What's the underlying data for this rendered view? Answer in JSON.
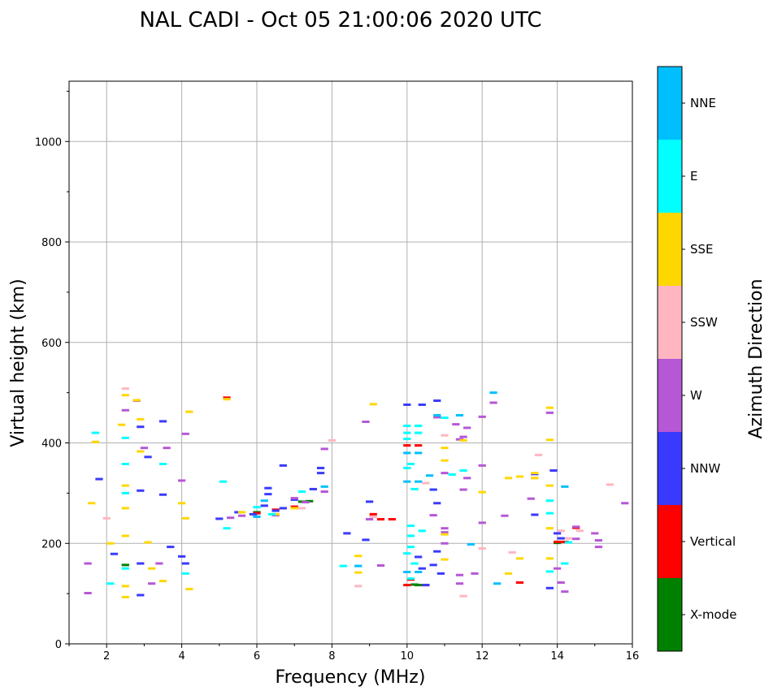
{
  "chart_data": {
    "type": "scatter",
    "title": "NAL CADI - Oct 05 21:00:06 2020 UTC",
    "xlabel": "Frequency (MHz)",
    "ylabel": "Virtual height (km)",
    "xlim": [
      1,
      16
    ],
    "ylim": [
      0,
      1120
    ],
    "grid": true,
    "x_ticks": [
      2,
      4,
      6,
      8,
      10,
      12,
      14,
      16
    ],
    "y_ticks": [
      0,
      200,
      400,
      600,
      800,
      1000
    ],
    "colorbar": {
      "title": "Azimuth Direction",
      "categories": [
        {
          "label": "X-mode",
          "color": "#008000"
        },
        {
          "label": "Vertical",
          "color": "#ff0000"
        },
        {
          "label": "NNW",
          "color": "#3a3aff"
        },
        {
          "label": "W",
          "color": "#b657d6"
        },
        {
          "label": "SSW",
          "color": "#ffb6c1"
        },
        {
          "label": "SSE",
          "color": "#ffd700"
        },
        {
          "label": "E",
          "color": "#00ffff"
        },
        {
          "label": "NNE",
          "color": "#00bfff"
        }
      ]
    },
    "series": [
      {
        "name": "X-mode",
        "points": [
          [
            2.5,
            157
          ],
          [
            6.0,
            262
          ],
          [
            7.2,
            283
          ],
          [
            7.4,
            284
          ],
          [
            10.2,
            118
          ],
          [
            10.3,
            117
          ],
          [
            14.0,
            201
          ]
        ]
      },
      {
        "name": "Vertical",
        "points": [
          [
            5.2,
            490
          ],
          [
            6.0,
            260
          ],
          [
            6.5,
            267
          ],
          [
            7.0,
            273
          ],
          [
            9.1,
            258
          ],
          [
            9.3,
            248
          ],
          [
            9.6,
            248
          ],
          [
            10.0,
            395
          ],
          [
            10.3,
            395
          ],
          [
            10.1,
            128
          ],
          [
            10.0,
            117
          ],
          [
            10.5,
            117
          ],
          [
            13.0,
            122
          ],
          [
            14.0,
            203
          ],
          [
            14.2,
            203
          ],
          [
            14.5,
            231
          ]
        ]
      },
      {
        "name": "NNW",
        "points": [
          [
            1.8,
            328
          ],
          [
            2.2,
            179
          ],
          [
            2.9,
            432
          ],
          [
            2.9,
            305
          ],
          [
            2.9,
            160
          ],
          [
            2.9,
            97
          ],
          [
            3.1,
            372
          ],
          [
            3.5,
            443
          ],
          [
            3.5,
            297
          ],
          [
            3.7,
            193
          ],
          [
            4.0,
            174
          ],
          [
            4.1,
            160
          ],
          [
            5.0,
            249
          ],
          [
            5.5,
            262
          ],
          [
            5.9,
            258
          ],
          [
            6.2,
            275
          ],
          [
            6.3,
            298
          ],
          [
            6.3,
            310
          ],
          [
            6.5,
            265
          ],
          [
            6.7,
            355
          ],
          [
            6.7,
            270
          ],
          [
            7.0,
            287
          ],
          [
            7.5,
            308
          ],
          [
            7.7,
            350
          ],
          [
            7.7,
            340
          ],
          [
            8.4,
            220
          ],
          [
            8.9,
            207
          ],
          [
            9.0,
            283
          ],
          [
            10.0,
            476
          ],
          [
            10.4,
            476
          ],
          [
            10.3,
            173
          ],
          [
            10.4,
            150
          ],
          [
            10.5,
            117
          ],
          [
            10.7,
            157
          ],
          [
            10.8,
            184
          ],
          [
            10.8,
            484
          ],
          [
            10.9,
            140
          ],
          [
            10.8,
            280
          ],
          [
            10.7,
            307
          ],
          [
            13.4,
            338
          ],
          [
            13.4,
            257
          ],
          [
            13.9,
            345
          ],
          [
            13.8,
            111
          ],
          [
            14.0,
            220
          ],
          [
            14.1,
            210
          ]
        ]
      },
      {
        "name": "W",
        "points": [
          [
            1.5,
            160
          ],
          [
            1.5,
            101
          ],
          [
            2.5,
            465
          ],
          [
            2.8,
            484
          ],
          [
            3.0,
            390
          ],
          [
            3.2,
            120
          ],
          [
            3.4,
            160
          ],
          [
            3.6,
            390
          ],
          [
            4.1,
            418
          ],
          [
            4.0,
            325
          ],
          [
            5.3,
            251
          ],
          [
            5.6,
            255
          ],
          [
            6.5,
            256
          ],
          [
            7.0,
            290
          ],
          [
            7.3,
            282
          ],
          [
            7.8,
            303
          ],
          [
            7.8,
            388
          ],
          [
            8.9,
            442
          ],
          [
            9.0,
            248
          ],
          [
            9.3,
            156
          ],
          [
            10.8,
            451
          ],
          [
            10.7,
            256
          ],
          [
            11.0,
            340
          ],
          [
            11.0,
            230
          ],
          [
            11.0,
            200
          ],
          [
            11.0,
            222
          ],
          [
            11.3,
            437
          ],
          [
            11.4,
            407
          ],
          [
            11.5,
            412
          ],
          [
            11.5,
            307
          ],
          [
            11.6,
            430
          ],
          [
            11.6,
            330
          ],
          [
            11.4,
            137
          ],
          [
            11.4,
            120
          ],
          [
            11.8,
            140
          ],
          [
            12.0,
            452
          ],
          [
            12.0,
            355
          ],
          [
            12.0,
            241
          ],
          [
            12.3,
            480
          ],
          [
            12.6,
            255
          ],
          [
            13.3,
            289
          ],
          [
            13.8,
            460
          ],
          [
            14.0,
            150
          ],
          [
            14.1,
            122
          ],
          [
            14.2,
            104
          ],
          [
            14.5,
            209
          ],
          [
            14.5,
            233
          ],
          [
            15.0,
            220
          ],
          [
            15.1,
            206
          ],
          [
            15.1,
            193
          ],
          [
            15.8,
            280
          ]
        ]
      },
      {
        "name": "SSW",
        "points": [
          [
            2.0,
            250
          ],
          [
            2.5,
            508
          ],
          [
            7.2,
            270
          ],
          [
            8.0,
            405
          ],
          [
            8.7,
            115
          ],
          [
            9.1,
            253
          ],
          [
            10.5,
            320
          ],
          [
            11.0,
            415
          ],
          [
            11.5,
            95
          ],
          [
            12.0,
            190
          ],
          [
            12.8,
            182
          ],
          [
            13.4,
            330
          ],
          [
            13.5,
            376
          ],
          [
            14.1,
            225
          ],
          [
            14.3,
            210
          ],
          [
            14.6,
            225
          ],
          [
            15.4,
            317
          ]
        ]
      },
      {
        "name": "SSE",
        "points": [
          [
            1.6,
            280
          ],
          [
            1.7,
            402
          ],
          [
            2.1,
            200
          ],
          [
            2.4,
            436
          ],
          [
            2.5,
            495
          ],
          [
            2.5,
            315
          ],
          [
            2.5,
            270
          ],
          [
            2.5,
            215
          ],
          [
            2.5,
            115
          ],
          [
            2.5,
            93
          ],
          [
            2.8,
            485
          ],
          [
            2.9,
            447
          ],
          [
            2.9,
            383
          ],
          [
            3.1,
            202
          ],
          [
            3.2,
            150
          ],
          [
            3.5,
            125
          ],
          [
            4.0,
            280
          ],
          [
            4.1,
            250
          ],
          [
            4.2,
            462
          ],
          [
            4.2,
            109
          ],
          [
            5.2,
            487
          ],
          [
            5.6,
            262
          ],
          [
            6.5,
            258
          ],
          [
            7.0,
            270
          ],
          [
            8.7,
            175
          ],
          [
            8.7,
            142
          ],
          [
            9.1,
            477
          ],
          [
            11.0,
            390
          ],
          [
            11.0,
            365
          ],
          [
            11.0,
            218
          ],
          [
            11.0,
            168
          ],
          [
            11.5,
            405
          ],
          [
            12.0,
            302
          ],
          [
            12.7,
            330
          ],
          [
            12.7,
            140
          ],
          [
            13.0,
            333
          ],
          [
            13.0,
            170
          ],
          [
            13.4,
            340
          ],
          [
            13.4,
            330
          ],
          [
            13.8,
            470
          ],
          [
            13.8,
            406
          ],
          [
            13.8,
            315
          ],
          [
            13.8,
            230
          ],
          [
            13.8,
            170
          ]
        ]
      },
      {
        "name": "E",
        "points": [
          [
            1.7,
            420
          ],
          [
            2.1,
            120
          ],
          [
            2.5,
            410
          ],
          [
            2.5,
            358
          ],
          [
            2.5,
            300
          ],
          [
            2.5,
            150
          ],
          [
            3.5,
            358
          ],
          [
            4.1,
            140
          ],
          [
            5.1,
            323
          ],
          [
            5.2,
            230
          ],
          [
            6.0,
            272
          ],
          [
            6.4,
            258
          ],
          [
            7.2,
            303
          ],
          [
            8.3,
            155
          ],
          [
            10.0,
            434
          ],
          [
            10.3,
            434
          ],
          [
            10.0,
            420
          ],
          [
            10.3,
            420
          ],
          [
            10.0,
            408
          ],
          [
            10.1,
            358
          ],
          [
            10.2,
            308
          ],
          [
            10.0,
            350
          ],
          [
            10.1,
            235
          ],
          [
            10.1,
            215
          ],
          [
            10.1,
            193
          ],
          [
            10.0,
            180
          ],
          [
            10.2,
            160
          ],
          [
            10.1,
            130
          ],
          [
            10.4,
            225
          ],
          [
            11.0,
            450
          ],
          [
            11.5,
            345
          ],
          [
            11.2,
            337
          ],
          [
            13.8,
            285
          ],
          [
            13.8,
            260
          ],
          [
            13.8,
            144
          ],
          [
            14.2,
            160
          ],
          [
            14.3,
            202
          ]
        ]
      },
      {
        "name": "NNE",
        "points": [
          [
            6.0,
            253
          ],
          [
            6.2,
            285
          ],
          [
            7.8,
            313
          ],
          [
            8.7,
            155
          ],
          [
            10.0,
            380
          ],
          [
            10.3,
            380
          ],
          [
            10.0,
            323
          ],
          [
            10.3,
            323
          ],
          [
            10.0,
            143
          ],
          [
            10.3,
            143
          ],
          [
            10.6,
            335
          ],
          [
            10.8,
            455
          ],
          [
            11.4,
            455
          ],
          [
            11.7,
            198
          ],
          [
            12.3,
            500
          ],
          [
            12.4,
            120
          ],
          [
            14.2,
            313
          ]
        ]
      }
    ]
  }
}
